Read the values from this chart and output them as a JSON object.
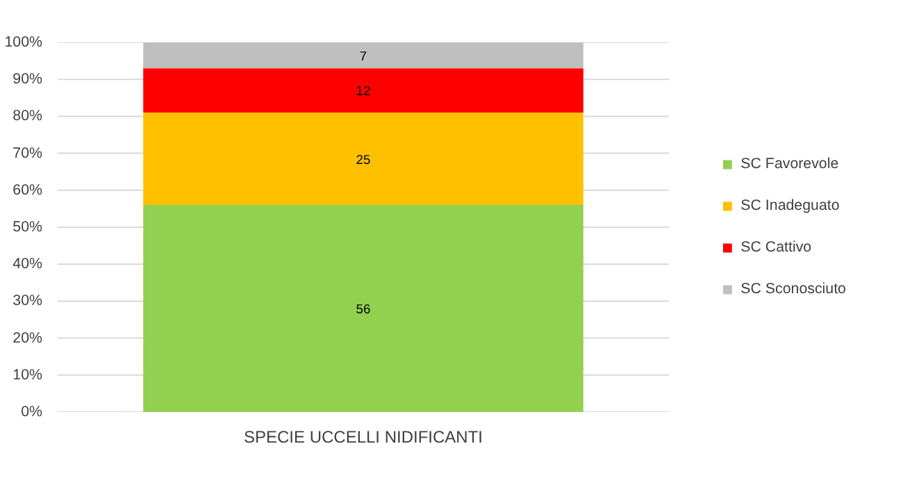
{
  "chart_data": {
    "type": "bar",
    "stacked": true,
    "categories": [
      "SPECIE UCCELLI NIDIFICANTI"
    ],
    "series": [
      {
        "name": "SC Favorevole",
        "color": "#92d050",
        "values": [
          56
        ]
      },
      {
        "name": "SC Inadeguato",
        "color": "#ffc000",
        "values": [
          25
        ]
      },
      {
        "name": "SC Cattivo",
        "color": "#ff0000",
        "values": [
          12
        ]
      },
      {
        "name": "SC Sconosciuto",
        "color": "#bfbfbf",
        "values": [
          7
        ]
      }
    ],
    "ylim": [
      0,
      100
    ],
    "yticks": [
      {
        "value": 0,
        "label": "0%"
      },
      {
        "value": 10,
        "label": "10%"
      },
      {
        "value": 20,
        "label": "20%"
      },
      {
        "value": 30,
        "label": "30%"
      },
      {
        "value": 40,
        "label": "40%"
      },
      {
        "value": 50,
        "label": "50%"
      },
      {
        "value": 60,
        "label": "60%"
      },
      {
        "value": 70,
        "label": "70%"
      },
      {
        "value": 80,
        "label": "80%"
      },
      {
        "value": 90,
        "label": "90%"
      },
      {
        "value": 100,
        "label": "100%"
      }
    ],
    "grid": "y",
    "legend": "right",
    "data_labels": true
  }
}
